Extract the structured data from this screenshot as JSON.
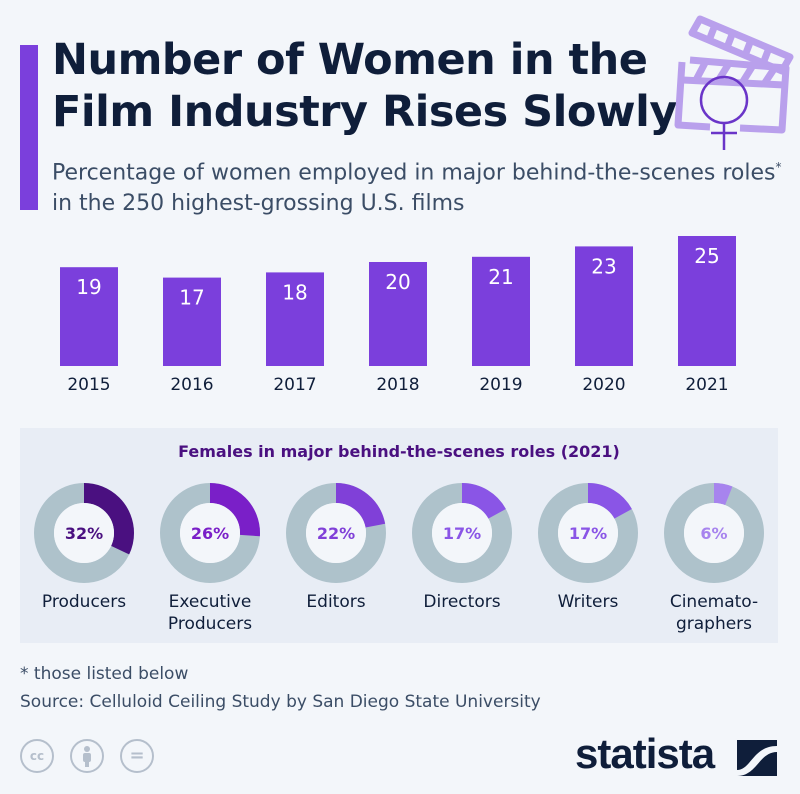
{
  "header": {
    "title_line1": "Number of Women in the",
    "title_line2": "Film Industry Rises Slowly",
    "subtitle_pre": "Percentage of women employed in major behind-the-scenes roles",
    "subtitle_mark": "*",
    "subtitle_post": " in the 250 highest-grossing U.S. films",
    "icon": "clapperboard-female-symbol-icon"
  },
  "chart_data": [
    {
      "type": "bar",
      "categories": [
        "2015",
        "2016",
        "2017",
        "2018",
        "2019",
        "2020",
        "2021"
      ],
      "values": [
        19,
        17,
        18,
        20,
        21,
        23,
        25
      ],
      "ylim": [
        0,
        25
      ],
      "grid": false,
      "color": "#7b3fdc"
    },
    {
      "type": "pie",
      "title": "Females in major behind-the-scenes roles (2021)",
      "categories": [
        "Producers",
        "Executive Producers",
        "Editors",
        "Directors",
        "Writers",
        "Cinematographers"
      ],
      "label_lines": [
        [
          "Producers"
        ],
        [
          "Executive",
          "Producers"
        ],
        [
          "Editors"
        ],
        [
          "Directors"
        ],
        [
          "Writers"
        ],
        [
          "Cinemato-",
          "graphers"
        ]
      ],
      "values": [
        32,
        26,
        22,
        17,
        17,
        6
      ],
      "value_labels": [
        "32%",
        "26%",
        "22%",
        "17%",
        "17%",
        "6%"
      ],
      "colors": [
        "#4a1080",
        "#7a1fc8",
        "#8040d8",
        "#8a55e6",
        "#8a55e6",
        "#a784ee"
      ],
      "remainder_color": "#aec2cb"
    }
  ],
  "footer": {
    "note": "* those listed below",
    "source": "Source: Celluloid Ceiling Study by San Diego State University",
    "license_icons": [
      "creative-commons-icon",
      "attribution-icon",
      "no-derivatives-icon"
    ],
    "cc_text": "cc",
    "nd_text": "=",
    "logo": "statista"
  }
}
